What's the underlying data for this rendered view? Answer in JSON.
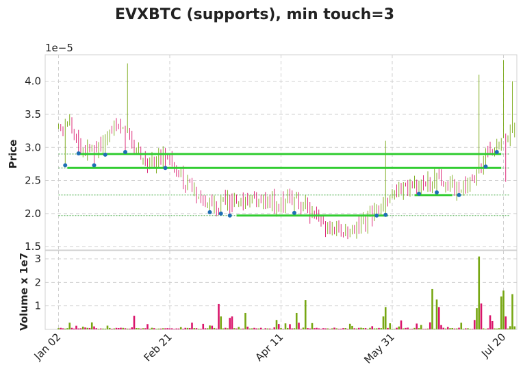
{
  "chart_data": {
    "type": "candlestick",
    "title": "EVXBTC (supports), min touch=3",
    "price_panel": {
      "ylabel": "Price",
      "scale_note": "1e−5",
      "yticks": [
        "1.5",
        "2.0",
        "2.5",
        "3.0",
        "3.5",
        "4.0"
      ],
      "ylim": [
        1.45,
        4.4
      ],
      "units": "1e-5 BTC"
    },
    "volume_panel": {
      "ylabel": "Volume x 1e7",
      "yticks": [
        "1",
        "2",
        "3"
      ],
      "ylim": [
        0,
        3.35
      ],
      "units": "1e7"
    },
    "xticks": [
      "Jan 02",
      "Feb 21",
      "Apr 11",
      "May 31",
      "Jul 20"
    ],
    "x_range_days": [
      -6,
      206
    ],
    "support_lines": [
      {
        "level": 2.9,
        "from_day": 9,
        "to_day": 199
      },
      {
        "level": 2.69,
        "from_day": 4,
        "to_day": 199
      },
      {
        "level": 2.28,
        "from_day": 160,
        "to_day": 177
      },
      {
        "level": 1.97,
        "from_day": 80,
        "to_day": 148
      }
    ],
    "support_levels_dotted": [
      2.9,
      2.69,
      2.28,
      1.97
    ],
    "touch_points": [
      {
        "day": 3,
        "price": 2.73
      },
      {
        "day": 9,
        "price": 2.91
      },
      {
        "day": 16,
        "price": 2.73
      },
      {
        "day": 21,
        "price": 2.89
      },
      {
        "day": 30,
        "price": 2.93
      },
      {
        "day": 48,
        "price": 2.69
      },
      {
        "day": 68,
        "price": 2.02
      },
      {
        "day": 73,
        "price": 2.0
      },
      {
        "day": 77,
        "price": 1.97
      },
      {
        "day": 106,
        "price": 2.01
      },
      {
        "day": 143,
        "price": 1.97
      },
      {
        "day": 147,
        "price": 1.98
      },
      {
        "day": 162,
        "price": 2.3
      },
      {
        "day": 170,
        "price": 2.32
      },
      {
        "day": 180,
        "price": 2.28
      },
      {
        "day": 192,
        "price": 2.71
      },
      {
        "day": 197,
        "price": 2.93
      }
    ],
    "anchors": [
      {
        "day": 0,
        "price": 3.3
      },
      {
        "day": 5,
        "price": 3.4
      },
      {
        "day": 10,
        "price": 2.95
      },
      {
        "day": 20,
        "price": 3.05
      },
      {
        "day": 27,
        "price": 3.4
      },
      {
        "day": 31,
        "price": 3.15
      },
      {
        "day": 40,
        "price": 2.75
      },
      {
        "day": 48,
        "price": 2.9
      },
      {
        "day": 56,
        "price": 2.5
      },
      {
        "day": 62,
        "price": 2.3
      },
      {
        "day": 70,
        "price": 2.1
      },
      {
        "day": 78,
        "price": 2.2
      },
      {
        "day": 90,
        "price": 2.2
      },
      {
        "day": 100,
        "price": 2.15
      },
      {
        "day": 108,
        "price": 2.2
      },
      {
        "day": 115,
        "price": 1.95
      },
      {
        "day": 122,
        "price": 1.75
      },
      {
        "day": 131,
        "price": 1.7
      },
      {
        "day": 140,
        "price": 1.95
      },
      {
        "day": 146,
        "price": 2.15
      },
      {
        "day": 152,
        "price": 2.35
      },
      {
        "day": 165,
        "price": 2.45
      },
      {
        "day": 170,
        "price": 2.55
      },
      {
        "day": 178,
        "price": 2.4
      },
      {
        "day": 186,
        "price": 2.45
      },
      {
        "day": 192,
        "price": 2.9
      },
      {
        "day": 200,
        "price": 3.1
      },
      {
        "day": 205,
        "price": 3.3
      }
    ],
    "volume_spikes": [
      {
        "day": 34,
        "value": 0.58
      },
      {
        "day": 72,
        "value": 1.08
      },
      {
        "day": 73,
        "value": 0.55
      },
      {
        "day": 77,
        "value": 0.49
      },
      {
        "day": 78,
        "value": 0.55
      },
      {
        "day": 84,
        "value": 0.7
      },
      {
        "day": 98,
        "value": 0.4
      },
      {
        "day": 107,
        "value": 0.7
      },
      {
        "day": 111,
        "value": 1.25
      },
      {
        "day": 146,
        "value": 0.55
      },
      {
        "day": 147,
        "value": 0.95
      },
      {
        "day": 154,
        "value": 0.38
      },
      {
        "day": 168,
        "value": 1.72
      },
      {
        "day": 170,
        "value": 1.27
      },
      {
        "day": 171,
        "value": 0.95
      },
      {
        "day": 187,
        "value": 0.4
      },
      {
        "day": 188,
        "value": 0.9
      },
      {
        "day": 189,
        "value": 3.1
      },
      {
        "day": 190,
        "value": 1.1
      },
      {
        "day": 194,
        "value": 0.6
      },
      {
        "day": 195,
        "value": 0.35
      },
      {
        "day": 199,
        "value": 1.4
      },
      {
        "day": 200,
        "value": 1.65
      },
      {
        "day": 201,
        "value": 0.55
      },
      {
        "day": 204,
        "value": 1.5
      }
    ],
    "grid": true,
    "colors": {
      "up": "#77a713",
      "down": "#d9156b",
      "support_line": "#32cd32",
      "support_dotted": "#2a9d2a",
      "touch_point": "#1f6fb4",
      "grid": "#cfcfcf",
      "frame": "#d0d0d0"
    }
  }
}
